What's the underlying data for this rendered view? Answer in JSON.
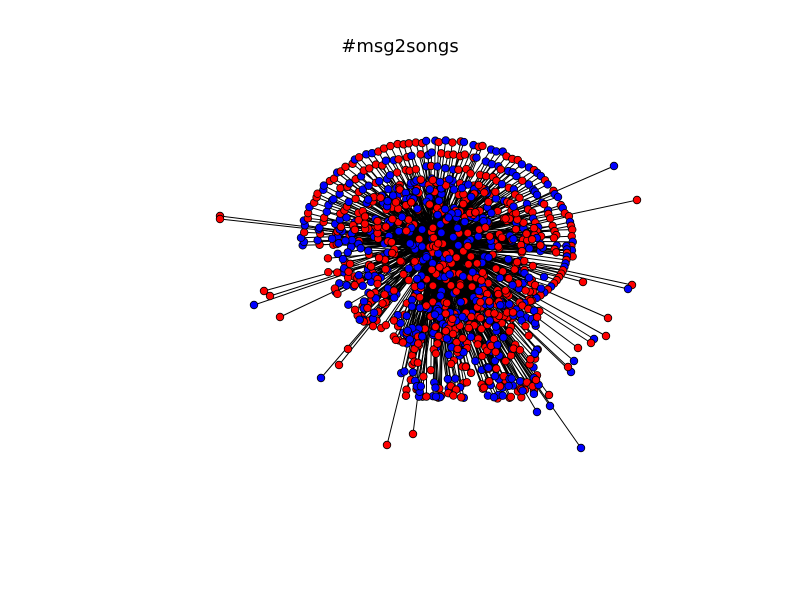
{
  "title": "#msg2songs",
  "colors": {
    "background": "#ffffff",
    "node_red": "#ff0000",
    "node_blue": "#0000ff",
    "node_stroke": "#000000",
    "edge": "#000000"
  }
}
